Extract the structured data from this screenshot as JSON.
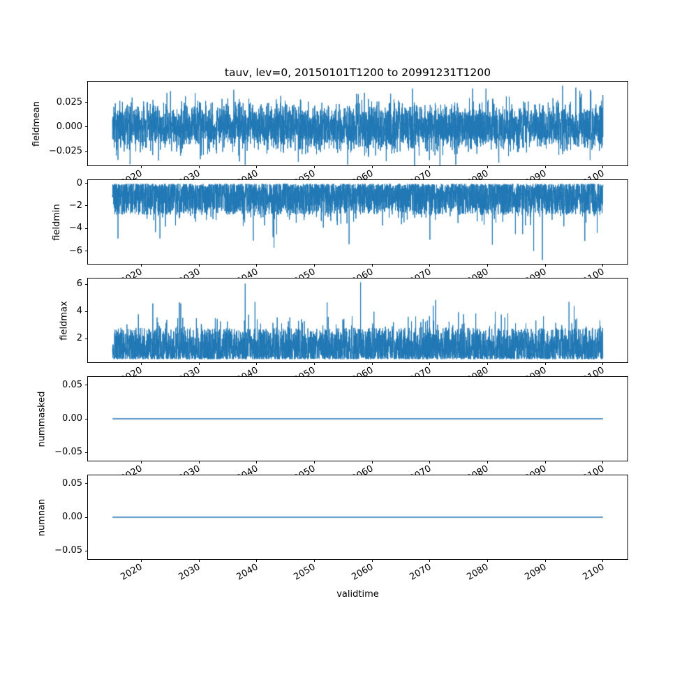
{
  "figure": {
    "title": "tauv, lev=0, 20150101T1200 to 20991231T1200",
    "xlabel": "validtime",
    "background": "#ffffff",
    "line_color": "#1f77b4",
    "spine_color": "#000000"
  },
  "chart_data": [
    {
      "type": "line",
      "ylabel": "fieldmean",
      "xlim": [
        2010.75,
        2104.25
      ],
      "x_data_range": [
        2015,
        2100
      ],
      "xticks": [
        2020,
        2030,
        2040,
        2050,
        2060,
        2070,
        2080,
        2090,
        2100
      ],
      "ylim": [
        -0.039,
        0.046
      ],
      "yticks": [
        {
          "v": 0.025,
          "label": "0.025"
        },
        {
          "v": 0.0,
          "label": "0.000"
        },
        {
          "v": -0.025,
          "label": "−0.025"
        }
      ],
      "series": {
        "name": "fieldmean",
        "color": "#1f77b4",
        "line_width": 1,
        "n": 4000,
        "gen": "sym_noise",
        "core": 0.012,
        "tail": 0.02,
        "rare_prob": 0.004,
        "rare_lo": 0.032,
        "rare_hi": 0.04,
        "seed": 7,
        "spikes": [
          {
            "x": 2023,
            "v": -0.034
          },
          {
            "x": 2037,
            "v": -0.035
          },
          {
            "x": 2067,
            "v": 0.039
          },
          {
            "x": 2093,
            "v": 0.042
          }
        ]
      }
    },
    {
      "type": "line",
      "ylabel": "fieldmin",
      "xlim": [
        2010.75,
        2104.25
      ],
      "x_data_range": [
        2015,
        2100
      ],
      "xticks": [
        2020,
        2030,
        2040,
        2050,
        2060,
        2070,
        2080,
        2090,
        2100
      ],
      "ylim": [
        -7.14,
        0.29
      ],
      "yticks": [
        {
          "v": 0,
          "label": "0"
        },
        {
          "v": -2,
          "label": "−2"
        },
        {
          "v": -4,
          "label": "−4"
        },
        {
          "v": -6,
          "label": "−6"
        }
      ],
      "series": {
        "name": "fieldmin",
        "color": "#1f77b4",
        "line_width": 1,
        "n": 4000,
        "gen": "neg_noise",
        "base": 0.05,
        "band": 2.75,
        "mid_prob": 0.08,
        "mid_extra": 1.3,
        "deep_prob": 0.0025,
        "deep_lo": 4.3,
        "deep_hi": 5.5,
        "seed": 11,
        "spikes": [
          {
            "x": 2043,
            "v": -5.7
          },
          {
            "x": 2056,
            "v": -5.4
          },
          {
            "x": 2070,
            "v": -5.0
          },
          {
            "x": 2088,
            "v": -6.0
          },
          {
            "x": 2089.5,
            "v": -6.8
          }
        ]
      }
    },
    {
      "type": "line",
      "ylabel": "fieldmax",
      "xlim": [
        2010.75,
        2104.25
      ],
      "x_data_range": [
        2015,
        2100
      ],
      "xticks": [
        2020,
        2030,
        2040,
        2050,
        2060,
        2070,
        2080,
        2090,
        2100
      ],
      "ylim": [
        0.27,
        6.43
      ],
      "yticks": [
        {
          "v": 2,
          "label": "2"
        },
        {
          "v": 4,
          "label": "4"
        },
        {
          "v": 6,
          "label": "6"
        }
      ],
      "series": {
        "name": "fieldmax",
        "color": "#1f77b4",
        "line_width": 1,
        "n": 4000,
        "gen": "pos_noise",
        "base": 0.5,
        "band": 2.3,
        "mid_prob": 0.08,
        "mid_extra": 1.3,
        "high_prob": 0.002,
        "high_lo": 4.3,
        "high_hi": 4.9,
        "seed": 13,
        "spikes": [
          {
            "x": 2022,
            "v": 4.6
          },
          {
            "x": 2038,
            "v": 6.05
          },
          {
            "x": 2058,
            "v": 6.15
          },
          {
            "x": 2071,
            "v": 4.85
          },
          {
            "x": 2095,
            "v": 4.4
          }
        ]
      }
    },
    {
      "type": "line",
      "ylabel": "nummasked",
      "xlim": [
        2010.75,
        2104.25
      ],
      "x_data_range": [
        2015,
        2100
      ],
      "xticks": [
        2020,
        2030,
        2040,
        2050,
        2060,
        2070,
        2080,
        2090,
        2100
      ],
      "ylim": [
        -0.062,
        0.062
      ],
      "yticks": [
        {
          "v": 0.05,
          "label": "0.05"
        },
        {
          "v": 0.0,
          "label": "0.00"
        },
        {
          "v": -0.05,
          "label": "−0.05"
        }
      ],
      "series": {
        "name": "nummasked",
        "color": "#1f77b4",
        "line_width": 1.5,
        "n": 2,
        "gen": "flat",
        "value": 0,
        "seed": 1,
        "spikes": []
      }
    },
    {
      "type": "line",
      "ylabel": "numnan",
      "xlim": [
        2010.75,
        2104.25
      ],
      "x_data_range": [
        2015,
        2100
      ],
      "xticks": [
        2020,
        2030,
        2040,
        2050,
        2060,
        2070,
        2080,
        2090,
        2100
      ],
      "ylim": [
        -0.062,
        0.062
      ],
      "yticks": [
        {
          "v": 0.05,
          "label": "0.05"
        },
        {
          "v": 0.0,
          "label": "0.00"
        },
        {
          "v": -0.05,
          "label": "−0.05"
        }
      ],
      "series": {
        "name": "numnan",
        "color": "#1f77b4",
        "line_width": 1.5,
        "n": 2,
        "gen": "flat",
        "value": 0,
        "seed": 1,
        "spikes": []
      }
    }
  ]
}
